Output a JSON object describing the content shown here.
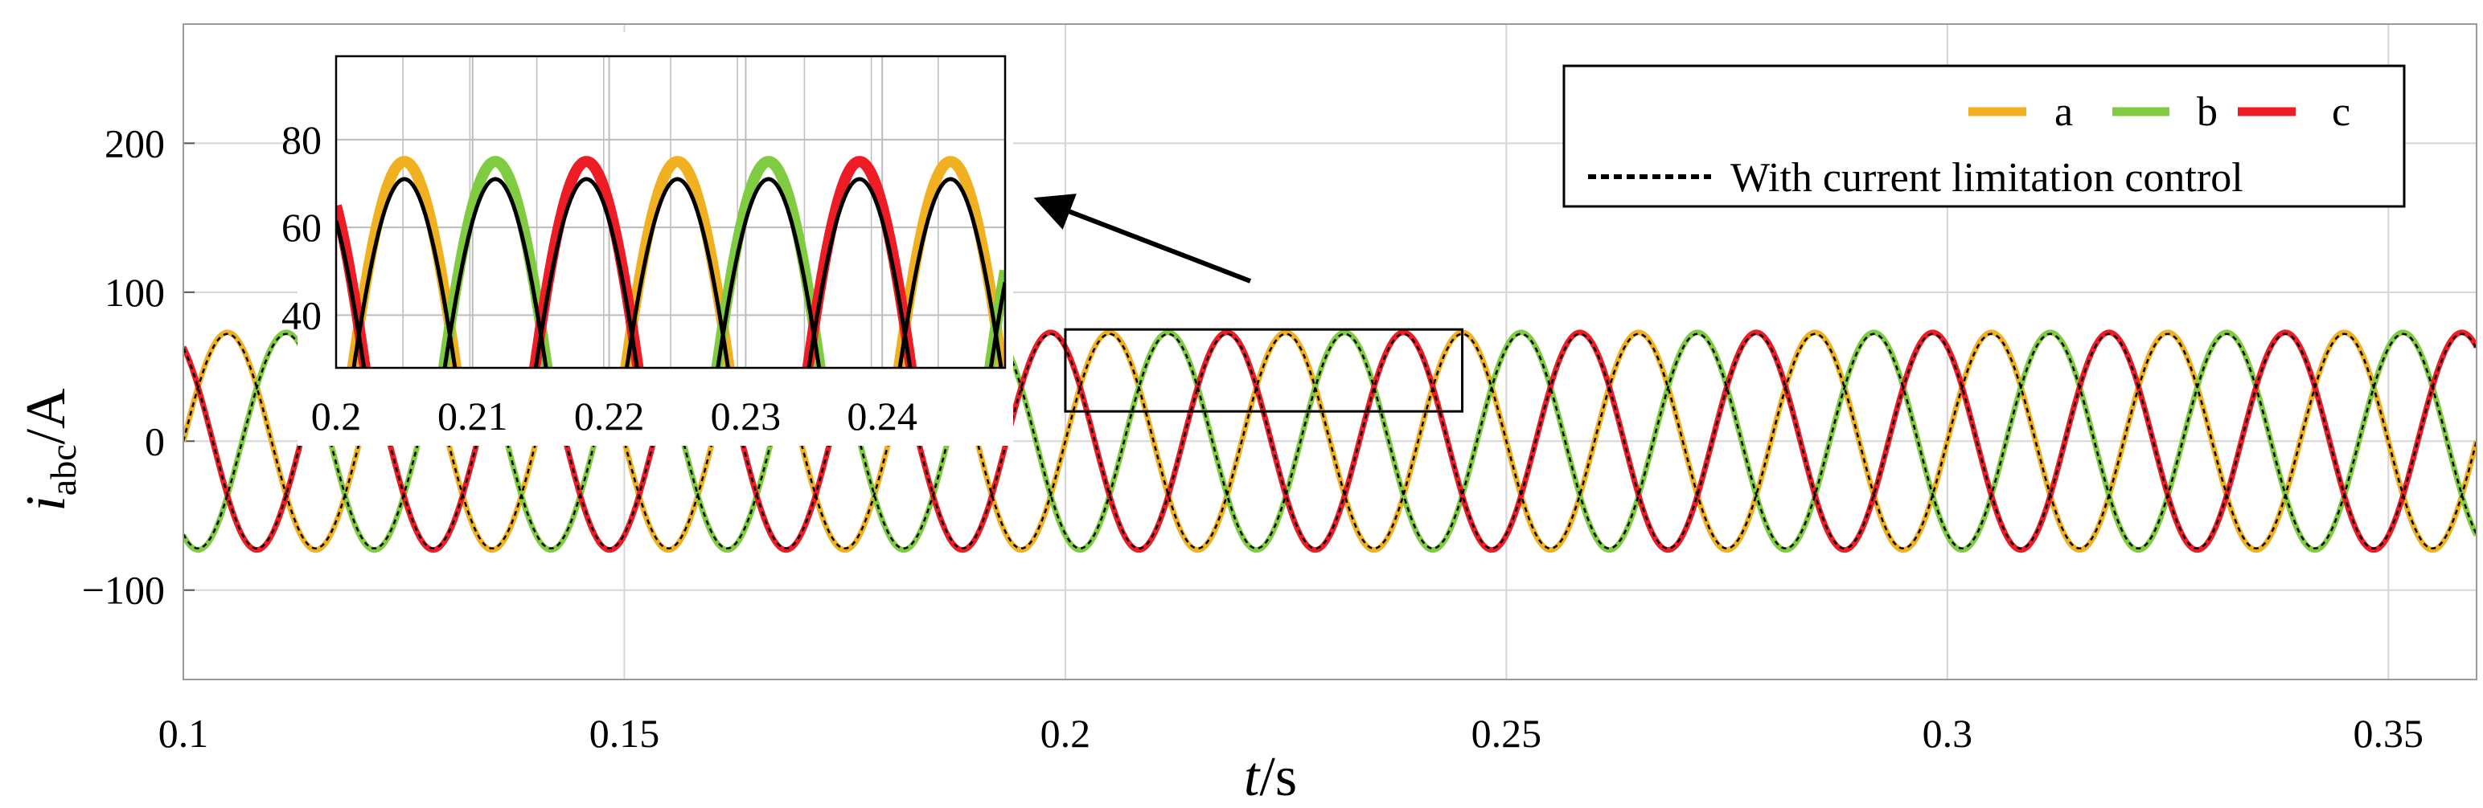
{
  "chart_data": {
    "type": "line",
    "x_unit": "s",
    "y_unit": "A",
    "xlabel_var": "t",
    "xlabel_unit": "/s",
    "ylabel_var": "i",
    "ylabel_sub": "abc",
    "ylabel_unit": "/A",
    "xlim": [
      0.1,
      0.36
    ],
    "ylim": [
      -160,
      280
    ],
    "xticks": [
      0.1,
      0.15,
      0.2,
      0.25,
      0.3,
      0.35
    ],
    "xtick_labels": [
      "0.1",
      "0.15",
      "0.2",
      "0.25",
      "0.3",
      "0.35"
    ],
    "yticks": [
      200,
      100,
      0,
      -100
    ],
    "ytick_labels": [
      "200",
      "100",
      "0",
      "−100"
    ],
    "grid": true,
    "frequency_hz": 50,
    "amplitude_A": 73,
    "series": [
      {
        "name": "a",
        "color": "#F0B020",
        "phase_deg": 0
      },
      {
        "name": "b",
        "color": "#80CC40",
        "phase_deg": -120
      },
      {
        "name": "c",
        "color": "#EE1C24",
        "phase_deg": 120
      },
      {
        "name": "With current limitation control",
        "color": "#000000",
        "style": "dashed",
        "amplitude_A": 72
      }
    ],
    "legend": {
      "placement": "top-right",
      "entries": [
        "a",
        "b",
        "c",
        "With current limitation control"
      ]
    },
    "zoom_box": {
      "xlim": [
        0.2,
        0.245
      ],
      "ylim": [
        20,
        75
      ]
    },
    "inset": {
      "xlim": [
        0.2,
        0.249
      ],
      "ylim": [
        28,
        99
      ],
      "xticks": [
        0.2,
        0.21,
        0.22,
        0.23,
        0.24
      ],
      "xtick_labels": [
        "0.2",
        "0.21",
        "0.22",
        "0.23",
        "0.24"
      ],
      "yticks": [
        80,
        60,
        40
      ],
      "ytick_labels": [
        "80",
        "60",
        "40"
      ],
      "peak_uncontrolled_A": 75,
      "peak_controlled_A": 71
    }
  }
}
